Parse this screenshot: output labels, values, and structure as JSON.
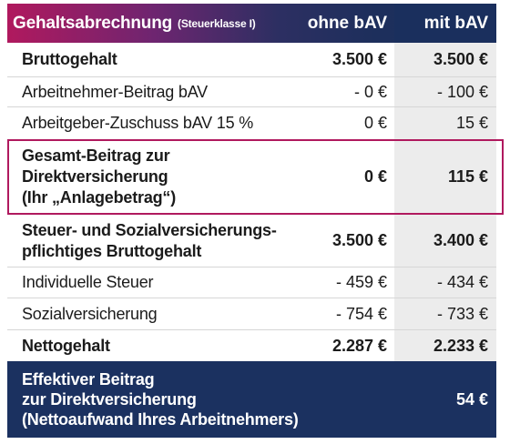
{
  "header": {
    "title": "Gehaltsabrechnung",
    "subtitle": "(Steuerklasse I)",
    "col1": "ohne bAV",
    "col2": "mit bAV"
  },
  "rows": [
    {
      "label": "Bruttogehalt",
      "v1": "3.500 €",
      "v2": "3.500 €"
    },
    {
      "label": "Arbeitnehmer-Beitrag bAV",
      "v1": "- 0 €",
      "v2": "- 100 €"
    },
    {
      "label": "Arbeitgeber-Zuschuss bAV 15 %",
      "v1": "0 €",
      "v2": "15 €"
    },
    {
      "label_lines": [
        "Gesamt-Beitrag zur",
        "Direktversicherung",
        "(Ihr „Anlagebetrag“)"
      ],
      "v1": "0 €",
      "v2": "115 €"
    },
    {
      "label_lines": [
        "Steuer- und Sozialversicherungs-",
        "pflichtiges Bruttogehalt"
      ],
      "v1": "3.500 €",
      "v2": "3.400 €"
    },
    {
      "label": "Individuelle Steuer",
      "v1": "- 459 €",
      "v2": "- 434 €"
    },
    {
      "label": "Sozialversicherung",
      "v1": "- 754 €",
      "v2": "- 733 €"
    },
    {
      "label": "Nettogehalt",
      "v1": "2.287 €",
      "v2": "2.233 €"
    }
  ],
  "footer": {
    "label_lines": [
      "Effektiver Beitrag",
      "zur Direktversicherung",
      "(Nettoaufwand Ihres Arbeitnehmers)"
    ],
    "value": "54 €"
  },
  "colors": {
    "header_gradient_start": "#b0195e",
    "header_gradient_end": "#1c315e",
    "highlight_border": "#b0195e",
    "footer_background": "#1b3160",
    "column_shade": "#ececec"
  }
}
